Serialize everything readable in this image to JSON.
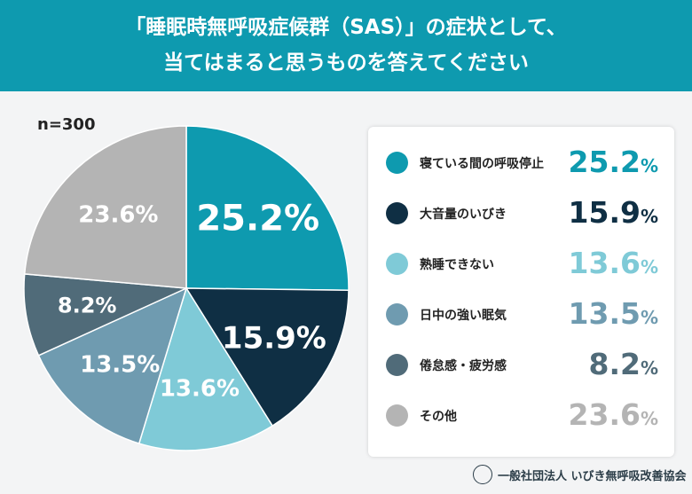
{
  "header": {
    "line1": "「睡眠時無呼吸症候群（SAS）」の症状として、",
    "line2": "当てはまると思うものを答えてください"
  },
  "sample": "n=300",
  "footer": {
    "org": "一般社団法人 いびき無呼吸改善協会"
  },
  "chart_data": {
    "type": "pie",
    "unit": "%",
    "start": "12 o'clock, clockwise",
    "slices": [
      {
        "label": "寝ている間の呼吸停止",
        "value": 25.2,
        "color": "#0e9aaf",
        "label_color": "#ffffff"
      },
      {
        "label": "大音量のいびき",
        "value": 15.9,
        "color": "#0f2f44",
        "label_color": "#ffffff"
      },
      {
        "label": "熟睡できない",
        "value": 13.6,
        "color": "#7fcad7",
        "label_color": "#ffffff"
      },
      {
        "label": "日中の強い眠気",
        "value": 13.5,
        "color": "#6f9bb0",
        "label_color": "#ffffff"
      },
      {
        "label": "倦怠感・疲労感",
        "value": 8.2,
        "color": "#506b79",
        "label_color": "#ffffff"
      },
      {
        "label": "その他",
        "value": 23.6,
        "color": "#b4b4b4",
        "label_color": "#ffffff"
      }
    ]
  }
}
